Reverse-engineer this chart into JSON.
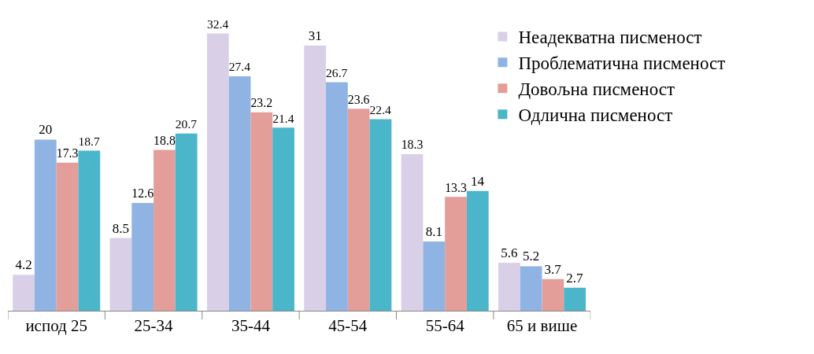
{
  "chart_data": {
    "type": "bar",
    "categories": [
      "испод 25",
      "25-34",
      "35-44",
      "45-54",
      "55-64",
      "65 и више"
    ],
    "series": [
      {
        "name": "Неадекватна писменост",
        "color": "#d9d0e8",
        "values": [
          4.2,
          8.5,
          32.4,
          31,
          18.3,
          5.6
        ]
      },
      {
        "name": "Проблематична писменост",
        "color": "#8fb4e3",
        "values": [
          20,
          12.6,
          27.4,
          26.7,
          8.1,
          5.2
        ]
      },
      {
        "name": "Довољна писменост",
        "color": "#e39e9a",
        "values": [
          17.3,
          18.8,
          23.2,
          23.6,
          13.3,
          3.7
        ]
      },
      {
        "name": "Одлична писменост",
        "color": "#4bb5c9",
        "values": [
          18.7,
          20.7,
          21.4,
          22.4,
          14,
          2.7
        ]
      }
    ],
    "data_labels": true,
    "legend": "top right"
  }
}
